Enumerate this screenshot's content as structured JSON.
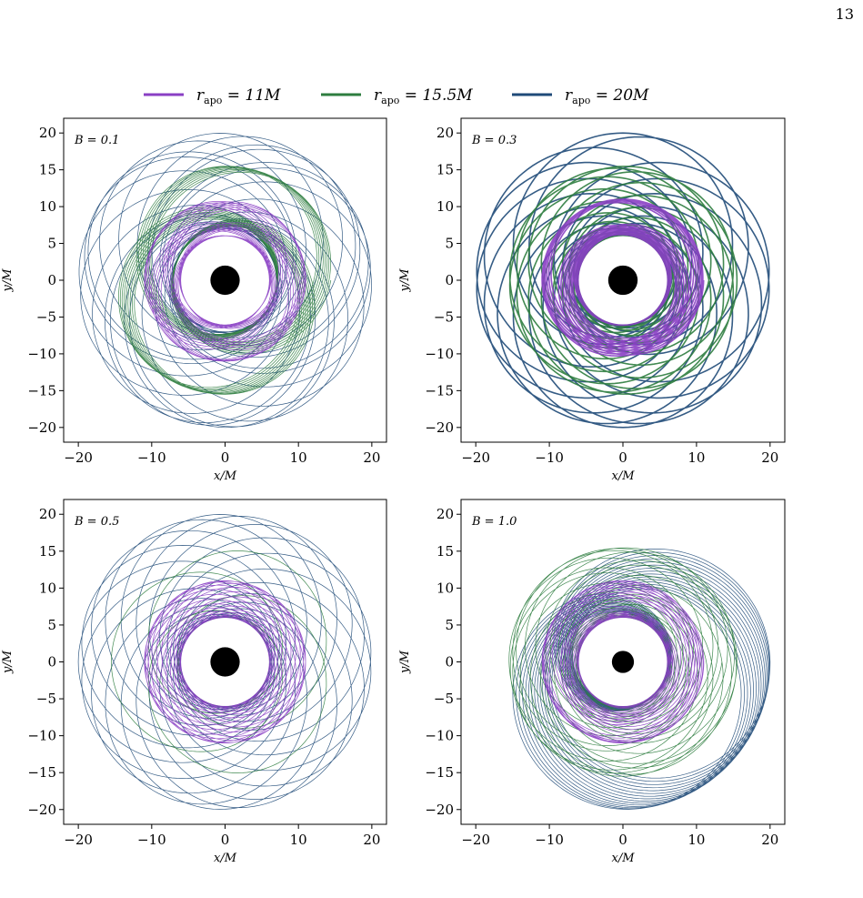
{
  "page_number": "13",
  "legend": [
    {
      "label": "r_apo = 11M",
      "sub": "apo",
      "main": "r",
      "rhs": "= 11M",
      "color": "#8a3fc4"
    },
    {
      "label": "r_apo = 15.5M",
      "sub": "apo",
      "main": "r",
      "rhs": "= 15.5M",
      "color": "#2e7d3f"
    },
    {
      "label": "r_apo = 20M",
      "sub": "apo",
      "main": "r",
      "rhs": "= 20M",
      "color": "#1f4a78"
    }
  ],
  "chart_data": [
    {
      "type": "line",
      "panel_label": "B = 0.1",
      "xlabel": "x/M",
      "ylabel": "y/M",
      "xlim": [
        -22,
        22
      ],
      "ylim": [
        -22,
        22
      ],
      "xticks": [
        -20,
        -10,
        0,
        10,
        20
      ],
      "yticks": [
        -20,
        -15,
        -10,
        -5,
        0,
        5,
        10,
        15,
        20
      ],
      "grid": false,
      "black_hole_radius": 2,
      "excluded_radius": 6,
      "series": [
        {
          "name": "r_apo = 11M",
          "r_apo": 11,
          "r_peri": 6,
          "color": "#8a3fc4"
        },
        {
          "name": "r_apo = 15.5M",
          "r_apo": 15.5,
          "r_peri": 7,
          "color": "#2e7d3f"
        },
        {
          "name": "r_apo = 20M",
          "r_apo": 20,
          "r_peri": 7,
          "color": "#1f4a78"
        }
      ]
    },
    {
      "type": "line",
      "panel_label": "B = 0.3",
      "xlabel": "x/M",
      "ylabel": "y/M",
      "xlim": [
        -22,
        22
      ],
      "ylim": [
        -22,
        22
      ],
      "xticks": [
        -20,
        -10,
        0,
        10,
        20
      ],
      "yticks": [
        -20,
        -15,
        -10,
        -5,
        0,
        5,
        10,
        15,
        20
      ],
      "grid": false,
      "black_hole_radius": 2,
      "excluded_radius": 6,
      "series": [
        {
          "name": "r_apo = 11M",
          "r_apo": 11,
          "r_peri": 6,
          "color": "#8a3fc4"
        },
        {
          "name": "r_apo = 15.5M",
          "r_apo": 15.5,
          "r_peri": 6,
          "color": "#2e7d3f"
        },
        {
          "name": "r_apo = 20M",
          "r_apo": 20,
          "r_peri": 6,
          "color": "#1f4a78"
        }
      ]
    },
    {
      "type": "line",
      "panel_label": "B = 0.5",
      "xlabel": "x/M",
      "ylabel": "y/M",
      "xlim": [
        -22,
        22
      ],
      "ylim": [
        -22,
        22
      ],
      "xticks": [
        -20,
        -10,
        0,
        10,
        20
      ],
      "yticks": [
        -20,
        -15,
        -10,
        -5,
        0,
        5,
        10,
        15,
        20
      ],
      "grid": false,
      "black_hole_radius": 2,
      "excluded_radius": 6,
      "series": [
        {
          "name": "r_apo = 11M",
          "r_apo": 11,
          "r_peri": 6,
          "color": "#8a3fc4"
        },
        {
          "name": "r_apo = 15.5M",
          "r_apo": 15.5,
          "r_peri": 6,
          "color": "#2e7d3f"
        },
        {
          "name": "r_apo = 20M",
          "r_apo": 20,
          "r_peri": 6,
          "color": "#1f4a78"
        }
      ]
    },
    {
      "type": "line",
      "panel_label": "B = 1.0",
      "xlabel": "x/M",
      "ylabel": "y/M",
      "xlim": [
        -22,
        22
      ],
      "ylim": [
        -22,
        22
      ],
      "xticks": [
        -20,
        -10,
        0,
        10,
        20
      ],
      "yticks": [
        -20,
        -15,
        -10,
        -5,
        0,
        5,
        10,
        15,
        20
      ],
      "grid": false,
      "black_hole_radius": 1.5,
      "excluded_radius": 6,
      "series": [
        {
          "name": "r_apo = 11M",
          "r_apo": 11,
          "r_peri": 6,
          "color": "#8a3fc4"
        },
        {
          "name": "r_apo = 15.5M",
          "r_apo": 15.5,
          "r_peri": 6,
          "color": "#2e7d3f"
        },
        {
          "name": "r_apo = 20M",
          "r_apo": 20,
          "r_peri": 6,
          "color": "#1f4a78"
        }
      ]
    }
  ]
}
